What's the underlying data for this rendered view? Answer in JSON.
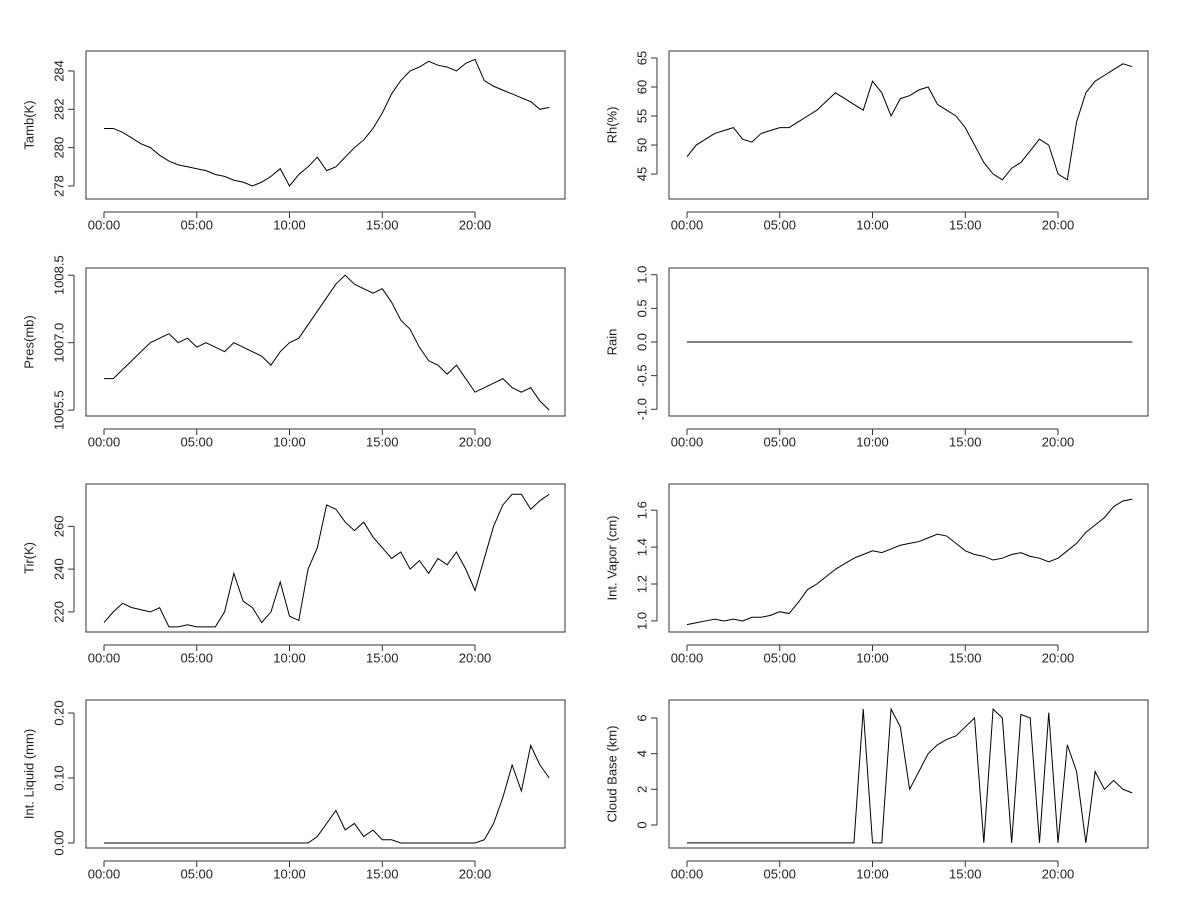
{
  "chart_data": [
    {
      "type": "line",
      "ylabel": "Tamb(K)",
      "x": [
        0,
        0.5,
        1,
        1.5,
        2,
        2.5,
        3,
        3.5,
        4,
        4.5,
        5,
        5.5,
        6,
        6.5,
        7,
        7.5,
        8,
        8.5,
        9,
        9.5,
        10,
        10.5,
        11,
        11.5,
        12,
        12.5,
        13,
        13.5,
        14,
        14.5,
        15,
        15.5,
        16,
        16.5,
        17,
        17.5,
        18,
        18.5,
        19,
        19.5,
        20,
        20.5,
        21,
        21.5,
        22,
        22.5,
        23,
        23.5,
        24
      ],
      "values": [
        281,
        281.0,
        280.8,
        280.5,
        280.2,
        280.0,
        279.6,
        279.3,
        279.1,
        279.0,
        278.9,
        278.8,
        278.6,
        278.5,
        278.3,
        278.2,
        278.0,
        278.2,
        278.5,
        278.9,
        278.0,
        278.6,
        279.0,
        279.5,
        278.8,
        279.0,
        279.5,
        280.0,
        280.4,
        281.0,
        281.8,
        282.8,
        283.5,
        284.0,
        284.2,
        284.5,
        284.3,
        284.2,
        284.0,
        284.4,
        284.6,
        283.5,
        283.2,
        283.0,
        282.8,
        282.6,
        282.4,
        282.0,
        282.1
      ],
      "color": "#000000",
      "xlim": [
        -0.97,
        24.85
      ],
      "ylim": [
        277.32,
        285.04
      ],
      "xticks": [
        {
          "value": 0,
          "label": "00:00"
        },
        {
          "value": 5,
          "label": "05:00"
        },
        {
          "value": 10,
          "label": "10:00"
        },
        {
          "value": 15,
          "label": "15:00"
        },
        {
          "value": 20,
          "label": "20:00"
        }
      ],
      "yticks": [
        278,
        280,
        282,
        284
      ]
    },
    {
      "type": "line",
      "ylabel": "Rh(%)",
      "x": [
        0,
        0.5,
        1,
        1.5,
        2,
        2.5,
        3,
        3.5,
        4,
        4.5,
        5,
        5.5,
        6,
        6.5,
        7,
        7.5,
        8,
        8.5,
        9,
        9.5,
        10,
        10.5,
        11,
        11.5,
        12,
        12.5,
        13,
        13.5,
        14,
        14.5,
        15,
        15.5,
        16,
        16.5,
        17,
        17.5,
        18,
        18.5,
        19,
        19.5,
        20,
        20.5,
        21,
        21.5,
        22,
        22.5,
        23,
        23.5,
        24
      ],
      "values": [
        48,
        50,
        51,
        52,
        52.5,
        53,
        51,
        50.5,
        52,
        52.5,
        53,
        53,
        54,
        55,
        56,
        57.5,
        59,
        58,
        57,
        56,
        61,
        59,
        55,
        58,
        58.5,
        59.5,
        60,
        57,
        56,
        55,
        53,
        50,
        47,
        45,
        44,
        46,
        47,
        49,
        51,
        50,
        45,
        44,
        54,
        59,
        61,
        62,
        63,
        64,
        63.5
      ],
      "color": "#000000",
      "xlim": [
        -0.97,
        24.85
      ],
      "ylim": [
        40.7,
        66.2
      ],
      "xticks": [
        {
          "value": 0,
          "label": "00:00"
        },
        {
          "value": 5,
          "label": "05:00"
        },
        {
          "value": 10,
          "label": "10:00"
        },
        {
          "value": 15,
          "label": "15:00"
        },
        {
          "value": 20,
          "label": "20:00"
        }
      ],
      "yticks": [
        45,
        50,
        55,
        60,
        65
      ]
    },
    {
      "type": "line",
      "ylabel": "Pres(mb)",
      "x": [
        0,
        0.5,
        1,
        1.5,
        2,
        2.5,
        3,
        3.5,
        4,
        4.5,
        5,
        5.5,
        6,
        6.5,
        7,
        7.5,
        8,
        8.5,
        9,
        9.5,
        10,
        10.5,
        11,
        11.5,
        12,
        12.5,
        13,
        13.5,
        14,
        14.5,
        15,
        15.5,
        16,
        16.5,
        17,
        17.5,
        18,
        18.5,
        19,
        19.5,
        20,
        20.5,
        21,
        21.5,
        22,
        22.5,
        23,
        23.5,
        24
      ],
      "values": [
        1006.2,
        1006.2,
        1006.4,
        1006.6,
        1006.8,
        1007.0,
        1007.1,
        1007.2,
        1007.0,
        1007.1,
        1006.9,
        1007.0,
        1006.9,
        1006.8,
        1007.0,
        1006.9,
        1006.8,
        1006.7,
        1006.5,
        1006.8,
        1007.0,
        1007.1,
        1007.4,
        1007.7,
        1008.0,
        1008.3,
        1008.5,
        1008.3,
        1008.2,
        1008.1,
        1008.2,
        1007.9,
        1007.5,
        1007.3,
        1006.9,
        1006.6,
        1006.5,
        1006.3,
        1006.5,
        1006.2,
        1005.9,
        1006.0,
        1006.1,
        1006.2,
        1006.0,
        1005.9,
        1006.0,
        1005.7,
        1005.5
      ],
      "color": "#000000",
      "xlim": [
        -0.97,
        24.85
      ],
      "ylim": [
        1005.37,
        1008.66
      ],
      "xticks": [
        {
          "value": 0,
          "label": "00:00"
        },
        {
          "value": 5,
          "label": "05:00"
        },
        {
          "value": 10,
          "label": "10:00"
        },
        {
          "value": 15,
          "label": "15:00"
        },
        {
          "value": 20,
          "label": "20:00"
        }
      ],
      "yticks": [
        1005.5,
        {
          "value": 1007,
          "label": "1007.0"
        },
        1008.5
      ]
    },
    {
      "type": "line",
      "ylabel": "Rain",
      "x": [
        0,
        24
      ],
      "values": [
        0,
        0
      ],
      "color": "#000000",
      "xlim": [
        -0.97,
        24.85
      ],
      "ylim": [
        -1.1,
        1.1
      ],
      "xticks": [
        {
          "value": 0,
          "label": "00:00"
        },
        {
          "value": 5,
          "label": "05:00"
        },
        {
          "value": 10,
          "label": "10:00"
        },
        {
          "value": 15,
          "label": "15:00"
        },
        {
          "value": 20,
          "label": "20:00"
        }
      ],
      "yticks": [
        {
          "value": -1,
          "label": "-1.0"
        },
        -0.5,
        {
          "value": 0,
          "label": "0.0"
        },
        0.5,
        {
          "value": 1,
          "label": "1.0"
        }
      ]
    },
    {
      "type": "line",
      "ylabel": "Tir(K)",
      "x": [
        0,
        0.5,
        1,
        1.5,
        2,
        2.5,
        3,
        3.5,
        4,
        4.5,
        5,
        5.5,
        6,
        6.5,
        7,
        7.5,
        8,
        8.5,
        9,
        9.5,
        10,
        10.5,
        11,
        11.5,
        12,
        12.5,
        13,
        13.5,
        14,
        14.5,
        15,
        15.5,
        16,
        16.5,
        17,
        17.5,
        18,
        18.5,
        19,
        19.5,
        20,
        20.5,
        21,
        21.5,
        22,
        22.5,
        23,
        23.5,
        24
      ],
      "values": [
        215,
        220,
        224,
        222,
        221,
        220,
        222,
        213,
        213,
        214,
        213,
        213,
        213,
        220,
        238,
        225,
        222,
        215,
        220,
        234,
        218,
        216,
        240,
        250,
        270,
        268,
        262,
        258,
        262,
        255,
        250,
        245,
        248,
        240,
        244,
        238,
        245,
        242,
        248,
        240,
        230,
        245,
        260,
        270,
        275,
        275,
        268,
        272,
        275
      ],
      "color": "#000000",
      "xlim": [
        -0.97,
        24.85
      ],
      "ylim": [
        210.6,
        279.8
      ],
      "xticks": [
        {
          "value": 0,
          "label": "00:00"
        },
        {
          "value": 5,
          "label": "05:00"
        },
        {
          "value": 10,
          "label": "10:00"
        },
        {
          "value": 15,
          "label": "15:00"
        },
        {
          "value": 20,
          "label": "20:00"
        }
      ],
      "yticks": [
        220,
        240,
        260
      ]
    },
    {
      "type": "line",
      "ylabel": "Int. Vapor (cm)",
      "x": [
        0,
        0.5,
        1,
        1.5,
        2,
        2.5,
        3,
        3.5,
        4,
        4.5,
        5,
        5.5,
        6,
        6.5,
        7,
        7.5,
        8,
        8.5,
        9,
        9.5,
        10,
        10.5,
        11,
        11.5,
        12,
        12.5,
        13,
        13.5,
        14,
        14.5,
        15,
        15.5,
        16,
        16.5,
        17,
        17.5,
        18,
        18.5,
        19,
        19.5,
        20,
        20.5,
        21,
        21.5,
        22,
        22.5,
        23,
        23.5,
        24
      ],
      "values": [
        0.98,
        0.99,
        1.0,
        1.01,
        1.0,
        1.01,
        1.0,
        1.02,
        1.02,
        1.03,
        1.05,
        1.04,
        1.1,
        1.17,
        1.2,
        1.24,
        1.28,
        1.31,
        1.34,
        1.36,
        1.38,
        1.37,
        1.39,
        1.41,
        1.42,
        1.43,
        1.45,
        1.47,
        1.46,
        1.42,
        1.38,
        1.36,
        1.35,
        1.33,
        1.34,
        1.36,
        1.37,
        1.35,
        1.34,
        1.32,
        1.34,
        1.38,
        1.42,
        1.48,
        1.52,
        1.56,
        1.62,
        1.65,
        1.66
      ],
      "color": "#000000",
      "xlim": [
        -0.97,
        24.85
      ],
      "ylim": [
        0.94,
        1.742
      ],
      "xticks": [
        {
          "value": 0,
          "label": "00:00"
        },
        {
          "value": 5,
          "label": "05:00"
        },
        {
          "value": 10,
          "label": "10:00"
        },
        {
          "value": 15,
          "label": "15:00"
        },
        {
          "value": 20,
          "label": "20:00"
        }
      ],
      "yticks": [
        {
          "value": 1,
          "label": "1.0"
        },
        1.2,
        1.4,
        1.6
      ]
    },
    {
      "type": "line",
      "ylabel": "Int. Liquid (mm)",
      "x": [
        0,
        0.5,
        1,
        1.5,
        2,
        2.5,
        3,
        3.5,
        4,
        4.5,
        5,
        5.5,
        6,
        6.5,
        7,
        7.5,
        8,
        8.5,
        9,
        9.5,
        10,
        10.5,
        11,
        11.5,
        12,
        12.5,
        13,
        13.5,
        14,
        14.5,
        15,
        15.5,
        16,
        16.5,
        17,
        17.5,
        18,
        18.5,
        19,
        19.5,
        20,
        20.5,
        21,
        21.5,
        22,
        22.5,
        23,
        23.5,
        24
      ],
      "values": [
        0,
        0,
        0,
        0,
        0,
        0,
        0,
        0,
        0,
        0,
        0,
        0,
        0,
        0,
        0,
        0,
        0,
        0,
        0,
        0,
        0,
        0,
        0,
        0.01,
        0.03,
        0.05,
        0.02,
        0.03,
        0.01,
        0.02,
        0.005,
        0.005,
        0,
        0,
        0,
        0,
        0,
        0,
        0,
        0,
        0,
        0.005,
        0.03,
        0.07,
        0.12,
        0.08,
        0.15,
        0.12,
        0.1
      ],
      "color": "#000000",
      "xlim": [
        -0.97,
        24.85
      ],
      "ylim": [
        -0.0077,
        0.22
      ],
      "xticks": [
        {
          "value": 0,
          "label": "00:00"
        },
        {
          "value": 5,
          "label": "05:00"
        },
        {
          "value": 10,
          "label": "10:00"
        },
        {
          "value": 15,
          "label": "15:00"
        },
        {
          "value": 20,
          "label": "20:00"
        }
      ],
      "yticks": [
        {
          "value": 0,
          "label": "0.00"
        },
        {
          "value": 0.1,
          "label": "0.10"
        },
        {
          "value": 0.2,
          "label": "0.20"
        }
      ]
    },
    {
      "type": "line",
      "ylabel": "Cloud Base (km)",
      "x": [
        0,
        0.5,
        1,
        1.5,
        2,
        2.5,
        3,
        3.5,
        4,
        4.5,
        5,
        5.5,
        6,
        6.5,
        7,
        7.5,
        8,
        8.5,
        9,
        9.5,
        10,
        10.5,
        11,
        11.5,
        12,
        12.5,
        13,
        13.5,
        14,
        14.5,
        15,
        15.5,
        16,
        16.5,
        17,
        17.5,
        18,
        18.5,
        19,
        19.5,
        20,
        20.5,
        21,
        21.5,
        22,
        22.5,
        23,
        23.5,
        24
      ],
      "values": [
        -1,
        -1,
        -1,
        -1,
        -1,
        -1,
        -1,
        -1,
        -1,
        -1,
        -1,
        -1,
        -1,
        -1,
        -1,
        -1,
        -1,
        -1,
        -1,
        6.5,
        -1,
        -1,
        6.5,
        5.5,
        2,
        3,
        4,
        4.5,
        4.8,
        5,
        5.5,
        6,
        -1,
        6.5,
        6,
        -1,
        6.2,
        6.0,
        -1,
        6.3,
        -1,
        4.5,
        3,
        -1,
        3,
        2,
        2.5,
        2,
        1.8
      ],
      "color": "#000000",
      "xlim": [
        -0.97,
        24.85
      ],
      "ylim": [
        -1.29,
        7.01
      ],
      "xticks": [
        {
          "value": 0,
          "label": "00:00"
        },
        {
          "value": 5,
          "label": "05:00"
        },
        {
          "value": 10,
          "label": "10:00"
        },
        {
          "value": 15,
          "label": "15:00"
        },
        {
          "value": 20,
          "label": "20:00"
        }
      ],
      "yticks": [
        0,
        2,
        4,
        6
      ]
    }
  ]
}
